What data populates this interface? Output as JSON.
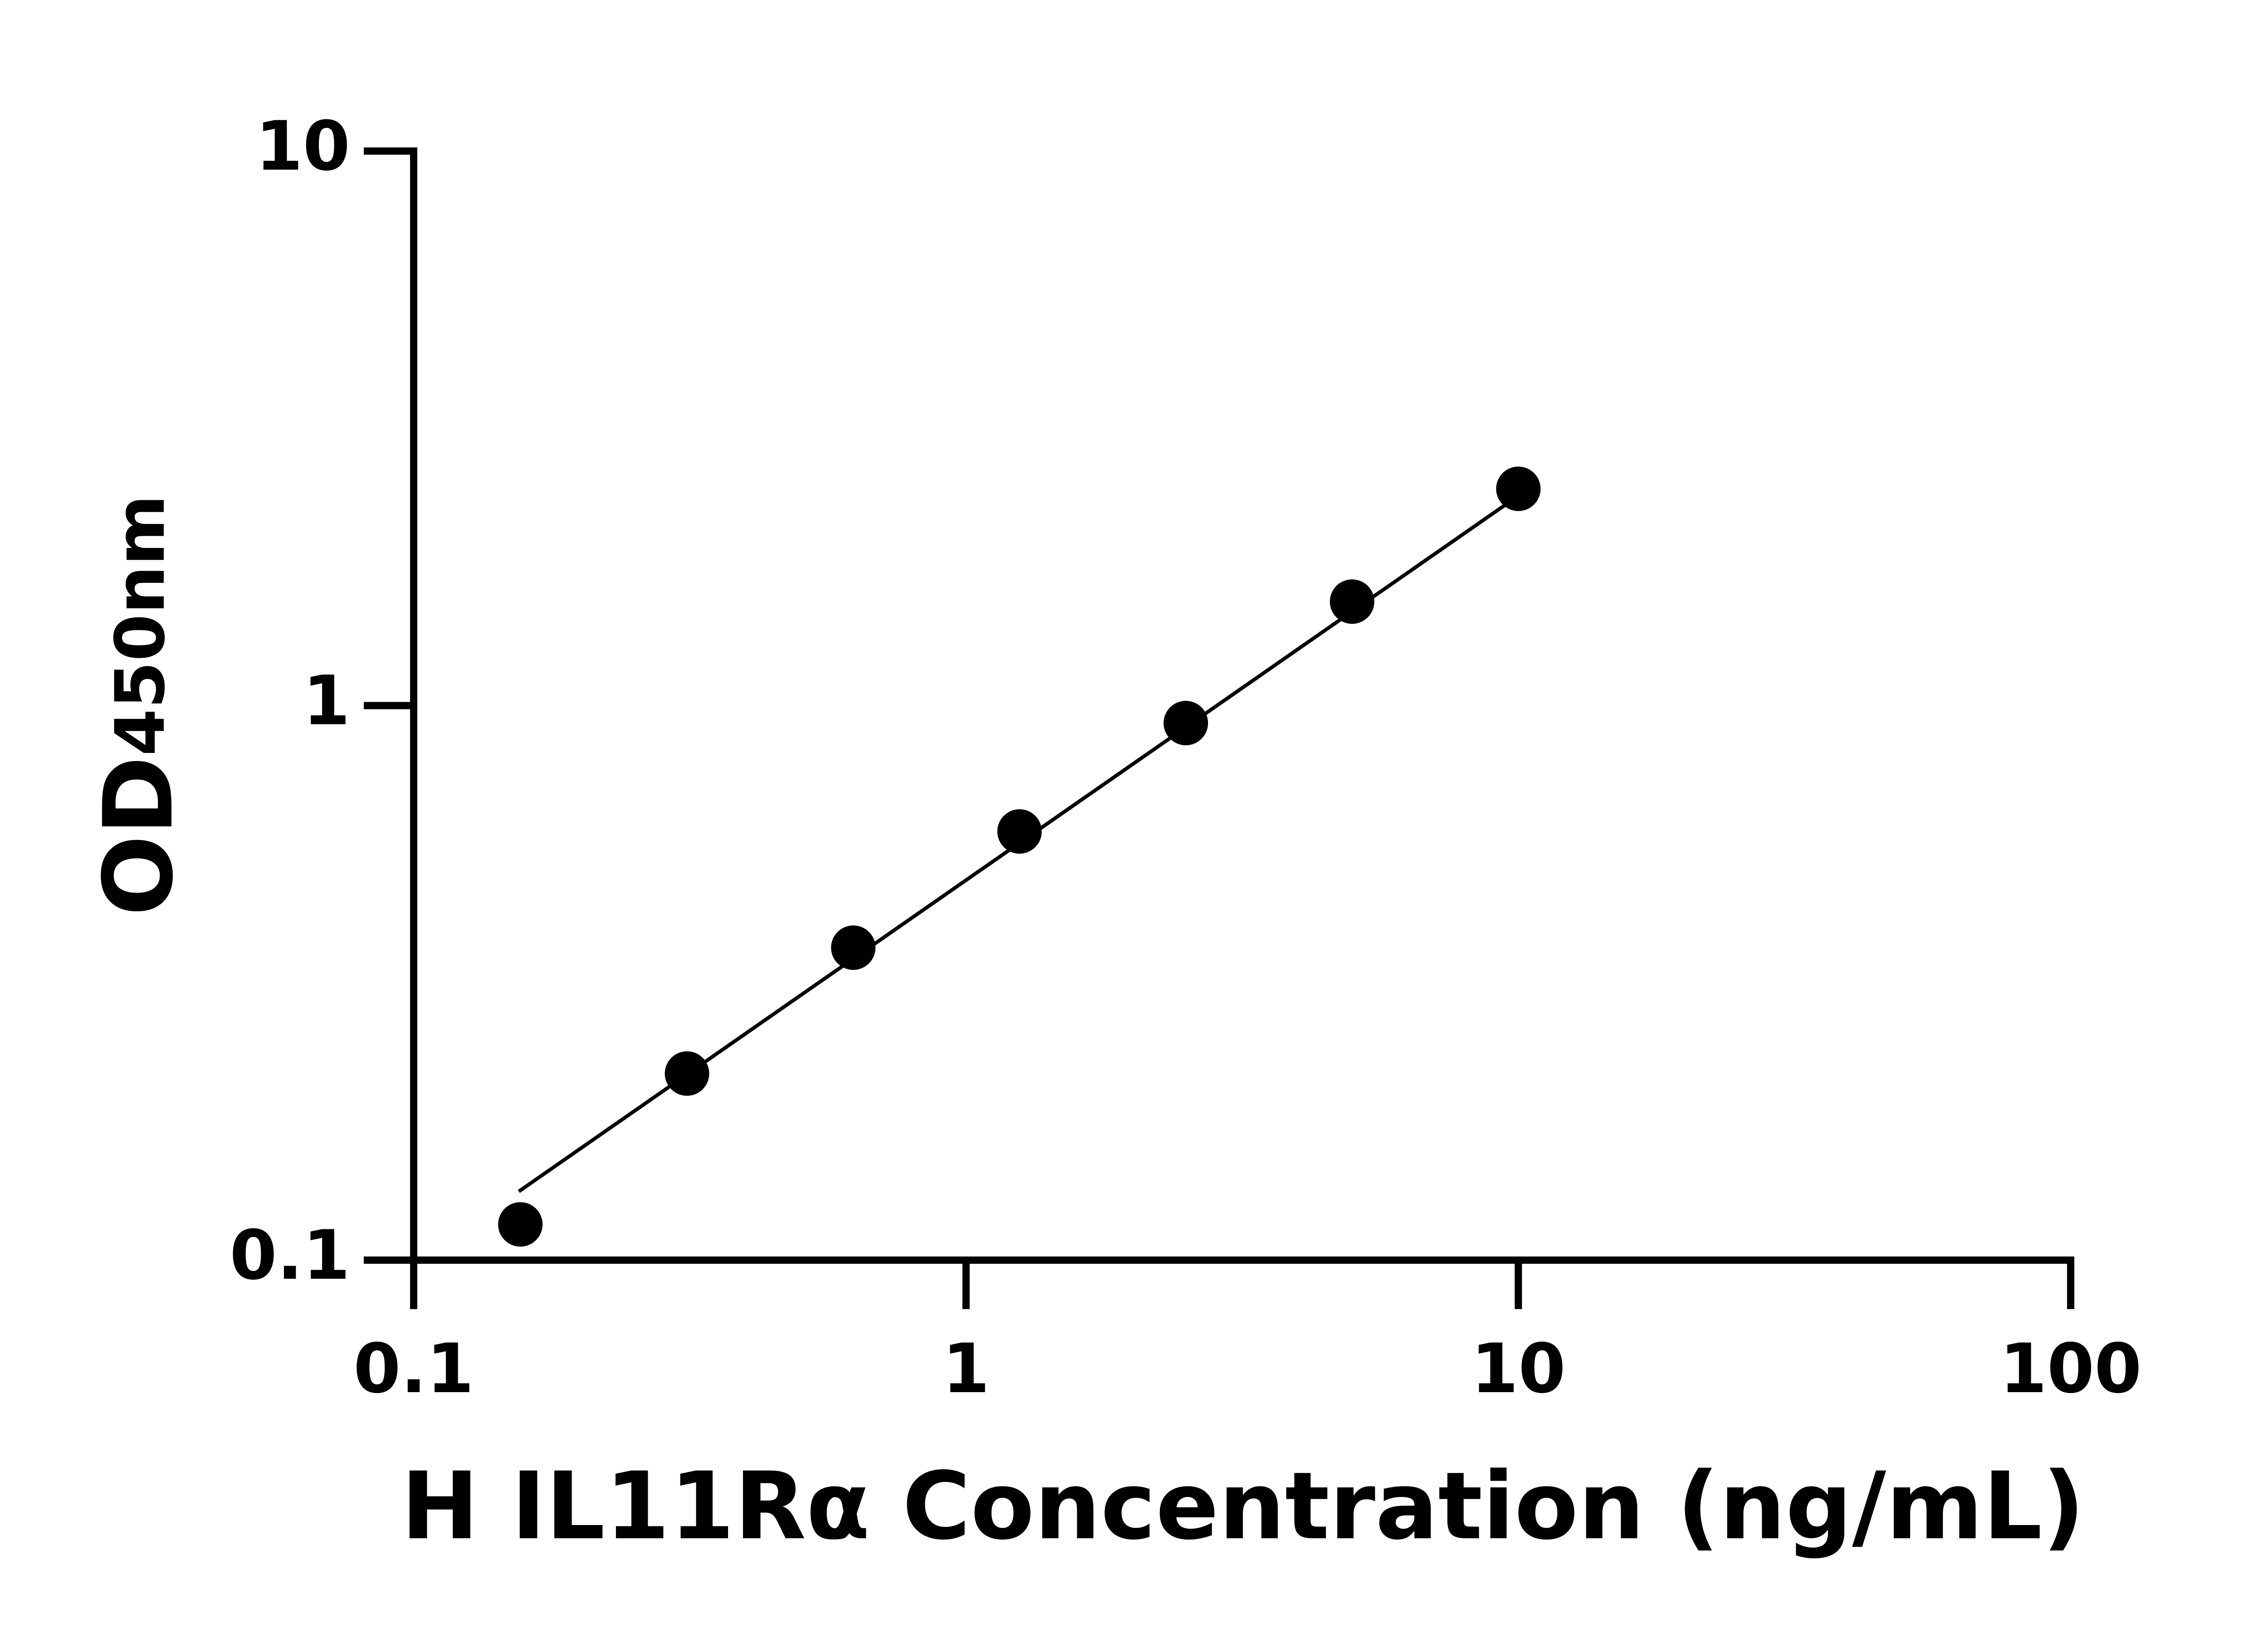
{
  "chart_data": {
    "type": "scatter",
    "x_label": "H IL11Rα Concentration (ng/mL)",
    "y_label": "OD",
    "y_label_subscript": "450nm",
    "x": [
      0.156,
      0.3125,
      0.625,
      1.25,
      2.5,
      5,
      10
    ],
    "values": [
      0.116,
      0.217,
      0.366,
      0.593,
      0.93,
      1.54,
      2.46
    ],
    "color": "#000000",
    "fit_line": {
      "x": [
        0.155,
        10
      ],
      "values": [
        0.133,
        2.39
      ]
    },
    "log_x": true,
    "log_y": true,
    "xlim": [
      0.1,
      100
    ],
    "xticks": [
      0.1,
      1,
      10,
      100
    ],
    "ylim": [
      0.1,
      10
    ],
    "yticks": [
      0.1,
      1,
      10
    ],
    "grid": false
  }
}
